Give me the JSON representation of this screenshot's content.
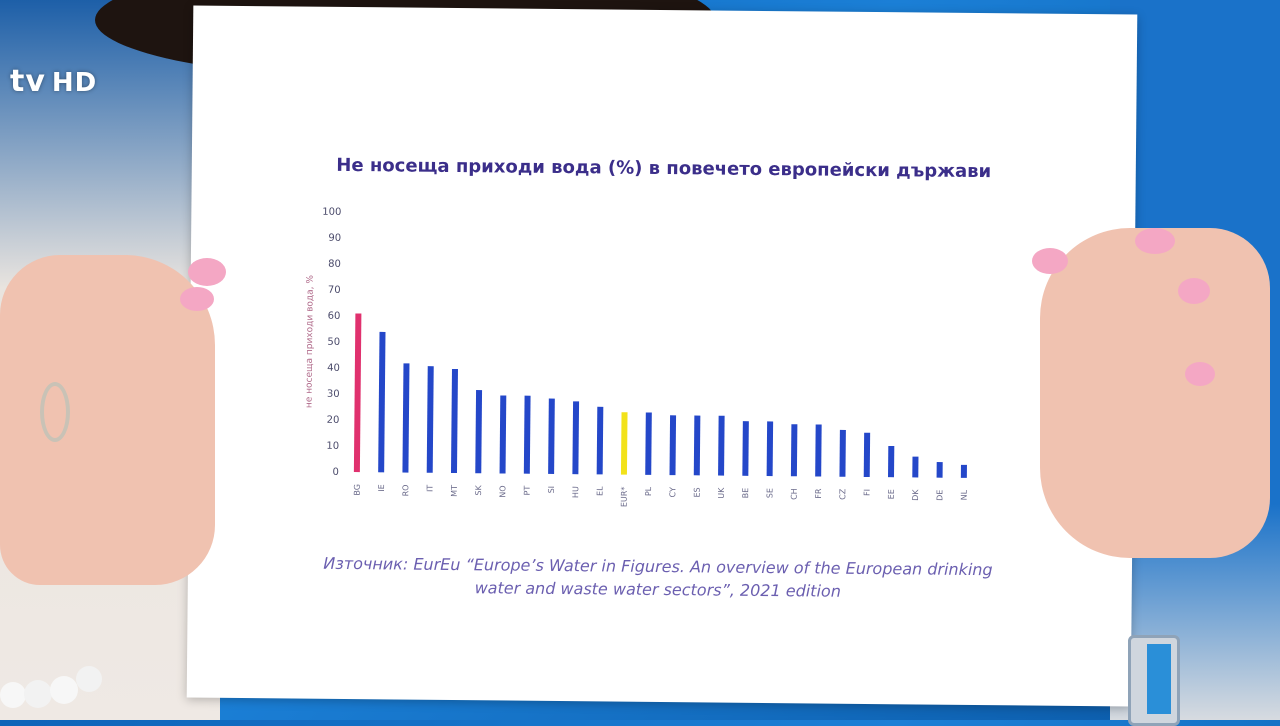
{
  "logo": {
    "brand": "tv",
    "suffix": "HD"
  },
  "chart_data": {
    "type": "bar",
    "title": "Не носеща приходи вода (%) в повечето европейски държави",
    "ylabel": "не носеща приходи вода, %",
    "ylim": [
      0,
      100
    ],
    "yticks": [
      0,
      10,
      20,
      30,
      40,
      50,
      60,
      70,
      80,
      90,
      100
    ],
    "categories": [
      "BG",
      "IE",
      "RO",
      "IT",
      "MT",
      "SK",
      "NO",
      "PT",
      "SI",
      "HU",
      "EL",
      "EUR*",
      "PL",
      "CY",
      "ES",
      "UK",
      "BE",
      "SE",
      "CH",
      "FR",
      "CZ",
      "FI",
      "EE",
      "DK",
      "DE",
      "NL"
    ],
    "values": [
      61,
      54,
      42,
      41,
      40,
      32,
      30,
      30,
      29,
      28,
      26,
      24,
      24,
      23,
      23,
      23,
      21,
      21,
      20,
      20,
      18,
      17,
      12,
      8,
      6,
      5
    ],
    "colors": {
      "default": "#2447c9",
      "highlight": "#e0316e",
      "average": "#f2e21a"
    },
    "highlight_category": "BG",
    "average_category": "EUR*",
    "grid": false,
    "legend": "none"
  },
  "source": {
    "line1": "Източник: EurEu “Europe’s Water in Figures. An overview of the European drinking",
    "line2": "water and waste water sectors”, 2021 edition"
  }
}
